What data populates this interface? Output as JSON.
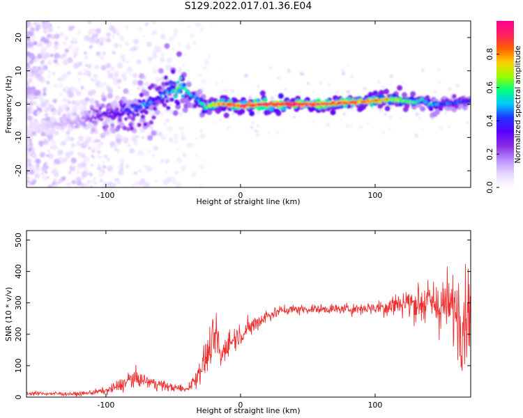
{
  "title": "S129.2022.017.01.36.E04",
  "colors": {
    "snr_line": "#ee3030",
    "colormap": [
      "#ffffff",
      "#e6d6ff",
      "#b98cff",
      "#8a2be2",
      "#5a00ff",
      "#2030ff",
      "#00c8ff",
      "#00ff80",
      "#9aff00",
      "#ffd000",
      "#ff6000",
      "#ff2060",
      "#ff0090"
    ]
  },
  "chart_data": [
    {
      "type": "heatmap",
      "title": "",
      "xlabel": "Height of straight line (km)",
      "ylabel": "Frequency (Hz)",
      "xlim": [
        -159,
        171
      ],
      "ylim": [
        -25,
        25
      ],
      "xticks": [
        "-100",
        "0",
        "100"
      ],
      "yticks": [
        "-20",
        "-10",
        "0",
        "10",
        "20"
      ],
      "colorbar": {
        "label": "Normalized spectral amplitude",
        "range": [
          0,
          1
        ],
        "ticks": [
          "0.0",
          "0.2",
          "0.4",
          "0.6",
          "0.8"
        ]
      },
      "ridge": {
        "x": [
          -159,
          -140,
          -120,
          -100,
          -90,
          -80,
          -70,
          -60,
          -52,
          -46,
          -42,
          -38,
          -34,
          -30,
          -25,
          -20,
          -10,
          0,
          20,
          40,
          60,
          80,
          100,
          110,
          120,
          130,
          135,
          140,
          150,
          160,
          171
        ],
        "y": [
          -8,
          -6,
          -5,
          -3,
          -2.5,
          -1.5,
          0,
          2,
          4,
          5,
          5,
          3,
          2,
          0.5,
          -1,
          0,
          0,
          -0.5,
          0,
          0,
          0,
          0.5,
          1,
          1.5,
          1,
          0.5,
          1.5,
          0,
          0,
          0.5,
          1
        ],
        "amplitude": [
          0.05,
          0.1,
          0.15,
          0.3,
          0.35,
          0.4,
          0.45,
          0.4,
          0.5,
          0.6,
          0.55,
          0.5,
          0.45,
          0.5,
          0.6,
          0.75,
          0.85,
          0.9,
          0.95,
          0.95,
          0.9,
          0.85,
          0.8,
          0.7,
          0.65,
          0.55,
          0.5,
          0.5,
          0.45,
          0.4,
          0.4
        ]
      }
    },
    {
      "type": "line",
      "title": "",
      "xlabel": "Height of straight line (km)",
      "ylabel": "SNR (10 * v/v)",
      "xlim": [
        -159,
        171
      ],
      "ylim": [
        0,
        530
      ],
      "xticks": [
        "-100",
        "0",
        "100"
      ],
      "yticks": [
        "0",
        "100",
        "200",
        "300",
        "400",
        "500"
      ],
      "envelope": {
        "x": [
          -159,
          -120,
          -100,
          -90,
          -80,
          -70,
          -60,
          -50,
          -40,
          -35,
          -30,
          -25,
          -20,
          -17,
          -15,
          -10,
          0,
          10,
          20,
          30,
          40,
          60,
          80,
          100,
          110,
          120,
          130,
          140,
          150,
          160,
          165,
          171
        ],
        "y": [
          12,
          10,
          20,
          35,
          60,
          50,
          40,
          30,
          25,
          50,
          90,
          130,
          180,
          200,
          120,
          170,
          200,
          230,
          260,
          275,
          280,
          280,
          280,
          285,
          290,
          300,
          300,
          300,
          290,
          280,
          250,
          300
        ],
        "noise": [
          6,
          5,
          10,
          20,
          25,
          20,
          15,
          12,
          10,
          25,
          40,
          50,
          60,
          80,
          40,
          40,
          30,
          25,
          20,
          15,
          15,
          12,
          15,
          20,
          30,
          35,
          50,
          60,
          80,
          110,
          140,
          120
        ]
      }
    }
  ]
}
